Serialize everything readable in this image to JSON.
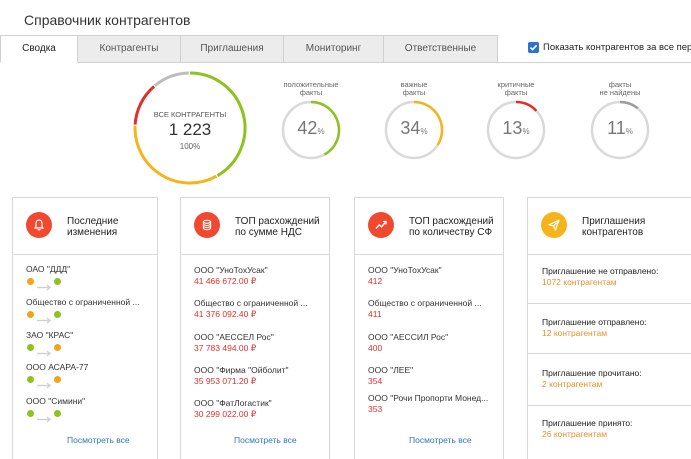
{
  "page": {
    "title": "Справочник контрагентов"
  },
  "tabs": [
    {
      "label": "Сводка",
      "active": true
    },
    {
      "label": "Контрагенты"
    },
    {
      "label": "Приглашения"
    },
    {
      "label": "Мониторинг"
    },
    {
      "label": "Ответственные"
    }
  ],
  "show_all": {
    "label": "Показать контрагентов за все пер",
    "checked": true
  },
  "summary": {
    "label": "ВСЕ КОНТРАГЕНТЫ",
    "value": "1 223",
    "sub": "100%",
    "segments": [
      {
        "name": "positive",
        "fraction": 0.42,
        "color": "#8dc21f"
      },
      {
        "name": "important",
        "fraction": 0.34,
        "color": "#f4b41a"
      },
      {
        "name": "critical",
        "fraction": 0.13,
        "color": "#e0302a"
      },
      {
        "name": "not_found",
        "fraction": 0.11,
        "color": "#bdbdbd"
      }
    ]
  },
  "gauges": [
    {
      "label_line1": "положительные",
      "label_line2": "факты",
      "value": "42",
      "unit": "%",
      "fraction": 0.42,
      "color": "#8dc21f"
    },
    {
      "label_line1": "важные",
      "label_line2": "факты",
      "value": "34",
      "unit": "%",
      "fraction": 0.34,
      "color": "#f4b41a"
    },
    {
      "label_line1": "критичные",
      "label_line2": "факты",
      "value": "13",
      "unit": "%",
      "fraction": 0.13,
      "color": "#e0302a"
    },
    {
      "label_line1": "факты",
      "label_line2": "не найдены",
      "value": "11",
      "unit": "%",
      "fraction": 0.11,
      "color": "#9e9e9e"
    }
  ],
  "panels": {
    "changes": {
      "title_line1": "Последние",
      "title_line2": "изменения",
      "icon": "bell-icon",
      "icon_color": "#f0492f",
      "items": [
        {
          "name": "ОАО \"ДДД\"",
          "from": "#f4a21a",
          "to": "#8dc21f"
        },
        {
          "name": "Общество с ограниченной ...",
          "from": "#f4a21a",
          "to": "#8dc21f"
        },
        {
          "name": "ЗАО \"КРАС\"",
          "from": "#8dc21f",
          "to": "#f4a21a"
        },
        {
          "name": "ООО АСАРА-77",
          "from": "#8dc21f",
          "to": "#f4a21a"
        },
        {
          "name": "ООО \"Симини\"",
          "from": "#8dc21f",
          "to": "#8dc21f"
        }
      ],
      "see_all": "Посмотреть все"
    },
    "vat": {
      "title_line1": "ТОП расхождений",
      "title_line2": "по сумме НДС",
      "icon": "coins-icon",
      "icon_color": "#f0492f",
      "items": [
        {
          "name": "ООО \"УноТохУсак\"",
          "value": "41 466 672.00 ₽"
        },
        {
          "name": "Общество с ограниченной ...",
          "value": "41 376 092.40 ₽"
        },
        {
          "name": "ООО \"АЕССЕЛ Рос\"",
          "value": "37 783 494.00 ₽"
        },
        {
          "name": "ООО \"Фирма \"Ойболит\"",
          "value": "35 953 071.20 ₽"
        },
        {
          "name": "ООО \"ФатЛогастик\"",
          "value": "30 299 022.00 ₽"
        }
      ],
      "see_all": "Посмотреть все"
    },
    "count": {
      "title_line1": "ТОП расхождений",
      "title_line2": "по количеству СФ",
      "icon": "trend-icon",
      "icon_color": "#f0492f",
      "items": [
        {
          "name": "ООО \"УноТохУсак\"",
          "value": "412"
        },
        {
          "name": "Общество с ограниченной ...",
          "value": "411"
        },
        {
          "name": "ООО \"АЕССИЛ Рос\"",
          "value": "400"
        },
        {
          "name": "ООО \"ЛЕЕ\"",
          "value": "354"
        },
        {
          "name": "ООО \"Рочи Пропорти Монед...",
          "value": "353"
        }
      ],
      "see_all": "Посмотреть все"
    },
    "invites": {
      "title_line1": "Приглашения",
      "title_line2": "контрагентов",
      "icon": "paper-plane-icon",
      "icon_color": "#f4b41a",
      "items": [
        {
          "title": "Приглашение не отправлено:",
          "count": "1072 контрагентам"
        },
        {
          "title": "Приглашение отправлено:",
          "count": "12 контрагентам"
        },
        {
          "title": "Приглашение прочитано:",
          "count": "2 контрагентам"
        },
        {
          "title": "Приглашение принято:",
          "count": "26 контрагентам"
        }
      ]
    }
  }
}
